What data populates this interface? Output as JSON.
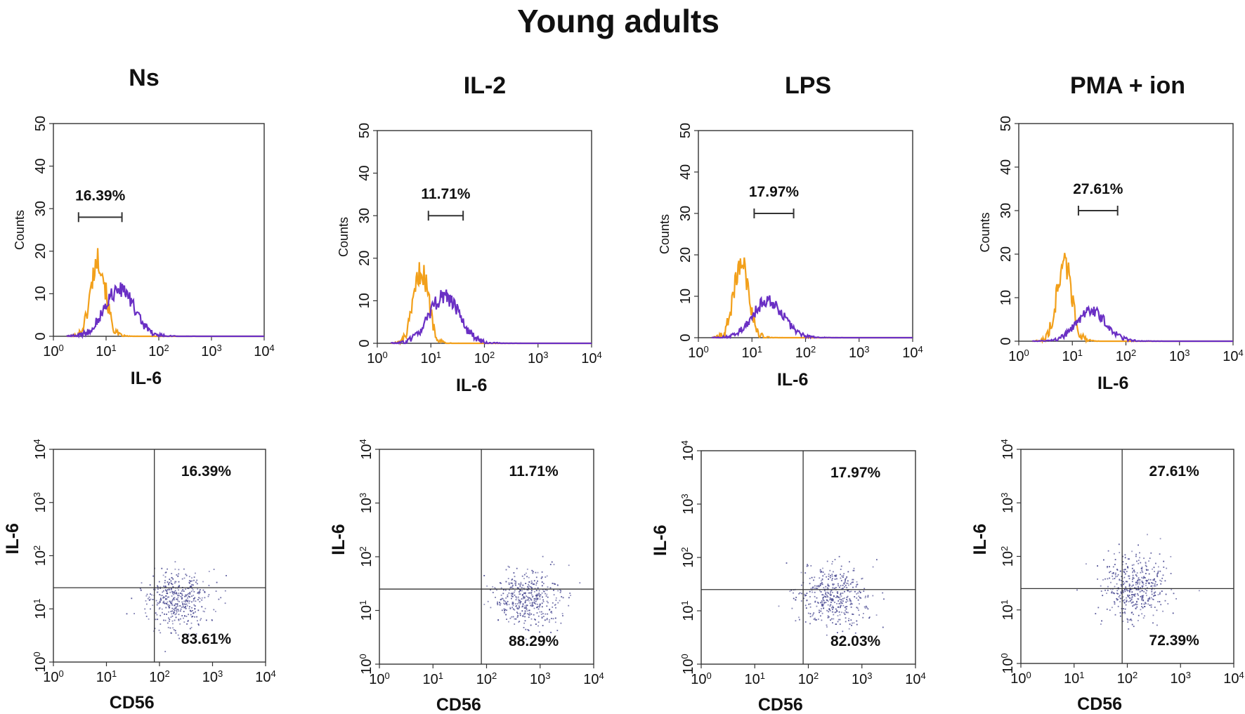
{
  "title": "Young adults",
  "colors": {
    "control_histogram": "#f2a01b",
    "stained_histogram": "#6a2fc4",
    "scatter_dots": "#4a4a92"
  },
  "chart_data": [
    {
      "id": "ns",
      "panel_title": "Ns",
      "histogram": {
        "type": "histogram",
        "xlabel": "IL-6",
        "ylabel": "Counts",
        "xscale": "log",
        "xlim": [
          1,
          10000
        ],
        "ylim": [
          0,
          50
        ],
        "x_ticks": [
          "10",
          "10",
          "10",
          "10",
          "10"
        ],
        "x_tick_exps": [
          "0",
          "1",
          "2",
          "3",
          "4"
        ],
        "y_ticks": [
          "0",
          "10",
          "20",
          "30",
          "40",
          "50"
        ],
        "gate_label": "16.39%",
        "gate_range": [
          3,
          20
        ],
        "gate_level": 28,
        "control_peak": {
          "center_log": 0.85,
          "height": 18
        },
        "stained_peak": {
          "center_log": 1.25,
          "height": 11
        }
      },
      "scatter": {
        "type": "scatter",
        "xlabel": "CD56",
        "ylabel": "IL-6",
        "xscale": "log",
        "yscale": "log",
        "xlim": [
          1,
          10000
        ],
        "ylim": [
          1,
          10000
        ],
        "x_ticks": [
          "10",
          "10",
          "10",
          "10",
          "10"
        ],
        "x_tick_exps": [
          "0",
          "1",
          "2",
          "3",
          "4"
        ],
        "y_ticks": [
          "10",
          "10",
          "10",
          "10",
          "10"
        ],
        "y_tick_exps": [
          "0",
          "1",
          "2",
          "3",
          "4"
        ],
        "quadrant_x": 80,
        "quadrant_y": 25,
        "upper_right_label": "16.39%",
        "lower_right_label": "83.61%",
        "cluster": {
          "center_x_log": 2.3,
          "center_y_log": 1.2
        }
      }
    },
    {
      "id": "il2",
      "panel_title": "IL-2",
      "histogram": {
        "type": "histogram",
        "xlabel": "IL-6",
        "ylabel": "Counts",
        "xscale": "log",
        "xlim": [
          1,
          10000
        ],
        "ylim": [
          0,
          50
        ],
        "x_ticks": [
          "10",
          "10",
          "10",
          "10",
          "10"
        ],
        "x_tick_exps": [
          "0",
          "1",
          "2",
          "3",
          "4"
        ],
        "y_ticks": [
          "0",
          "10",
          "20",
          "30",
          "40",
          "50"
        ],
        "gate_label": "11.71%",
        "gate_range": [
          9,
          40
        ],
        "gate_level": 30,
        "control_peak": {
          "center_log": 0.82,
          "height": 17
        },
        "stained_peak": {
          "center_log": 1.25,
          "height": 11
        }
      },
      "scatter": {
        "type": "scatter",
        "xlabel": "CD56",
        "ylabel": "IL-6",
        "xscale": "log",
        "yscale": "log",
        "xlim": [
          1,
          10000
        ],
        "ylim": [
          1,
          10000
        ],
        "x_ticks": [
          "10",
          "10",
          "10",
          "10",
          "10"
        ],
        "x_tick_exps": [
          "0",
          "1",
          "2",
          "3",
          "4"
        ],
        "y_ticks": [
          "10",
          "10",
          "10",
          "10",
          "10"
        ],
        "y_tick_exps": [
          "0",
          "1",
          "2",
          "3",
          "4"
        ],
        "quadrant_x": 80,
        "quadrant_y": 25,
        "upper_right_label": "11.71%",
        "lower_right_label": "88.29%",
        "cluster": {
          "center_x_log": 2.75,
          "center_y_log": 1.2
        }
      }
    },
    {
      "id": "lps",
      "panel_title": "LPS",
      "histogram": {
        "type": "histogram",
        "xlabel": "IL-6",
        "ylabel": "Counts",
        "xscale": "log",
        "xlim": [
          1,
          10000
        ],
        "ylim": [
          0,
          50
        ],
        "x_ticks": [
          "10",
          "10",
          "10",
          "10",
          "10"
        ],
        "x_tick_exps": [
          "0",
          "1",
          "2",
          "3",
          "4"
        ],
        "y_ticks": [
          "0",
          "10",
          "20",
          "30",
          "40",
          "50"
        ],
        "gate_label": "17.97%",
        "gate_range": [
          11,
          60
        ],
        "gate_level": 30,
        "control_peak": {
          "center_log": 0.8,
          "height": 18
        },
        "stained_peak": {
          "center_log": 1.3,
          "height": 9
        }
      },
      "scatter": {
        "type": "scatter",
        "xlabel": "CD56",
        "ylabel": "IL-6",
        "xscale": "log",
        "yscale": "log",
        "xlim": [
          1,
          10000
        ],
        "ylim": [
          1,
          10000
        ],
        "x_ticks": [
          "10",
          "10",
          "10",
          "10",
          "10"
        ],
        "x_tick_exps": [
          "0",
          "1",
          "2",
          "3",
          "4"
        ],
        "y_ticks": [
          "10",
          "10",
          "10",
          "10",
          "10"
        ],
        "y_tick_exps": [
          "0",
          "1",
          "2",
          "3",
          "4"
        ],
        "quadrant_x": 80,
        "quadrant_y": 25,
        "upper_right_label": "17.97%",
        "lower_right_label": "82.03%",
        "cluster": {
          "center_x_log": 2.45,
          "center_y_log": 1.3
        }
      }
    },
    {
      "id": "pma_ion",
      "panel_title": "PMA + ion",
      "histogram": {
        "type": "histogram",
        "xlabel": "IL-6",
        "ylabel": "Counts",
        "xscale": "log",
        "xlim": [
          1,
          10000
        ],
        "ylim": [
          0,
          50
        ],
        "x_ticks": [
          "10",
          "10",
          "10",
          "10",
          "10"
        ],
        "x_tick_exps": [
          "0",
          "1",
          "2",
          "3",
          "4"
        ],
        "y_ticks": [
          "0",
          "10",
          "20",
          "30",
          "40",
          "50"
        ],
        "gate_label": "27.61%",
        "gate_range": [
          13,
          70
        ],
        "gate_level": 30,
        "control_peak": {
          "center_log": 0.85,
          "height": 18
        },
        "stained_peak": {
          "center_log": 1.35,
          "height": 7
        }
      },
      "scatter": {
        "type": "scatter",
        "xlabel": "CD56",
        "ylabel": "IL-6",
        "xscale": "log",
        "yscale": "log",
        "xlim": [
          1,
          10000
        ],
        "ylim": [
          1,
          10000
        ],
        "x_ticks": [
          "10",
          "10",
          "10",
          "10",
          "10"
        ],
        "x_tick_exps": [
          "0",
          "1",
          "2",
          "3",
          "4"
        ],
        "y_ticks": [
          "10",
          "10",
          "10",
          "10",
          "10"
        ],
        "y_tick_exps": [
          "0",
          "1",
          "2",
          "3",
          "4"
        ],
        "quadrant_x": 80,
        "quadrant_y": 25,
        "upper_right_label": "27.61%",
        "lower_right_label": "72.39%",
        "cluster": {
          "center_x_log": 2.15,
          "center_y_log": 1.45
        }
      }
    }
  ]
}
